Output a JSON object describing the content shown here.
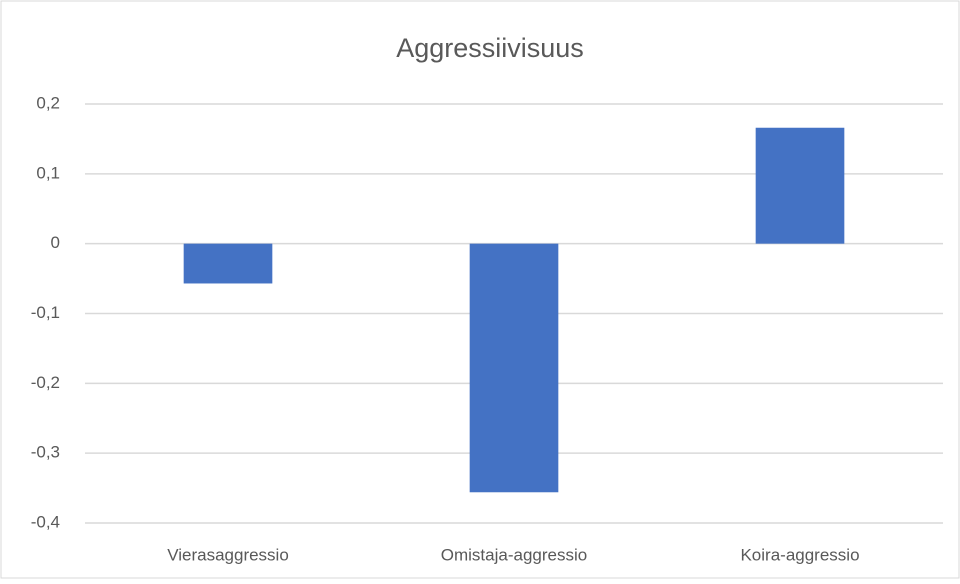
{
  "chart_data": {
    "type": "bar",
    "title": "Aggressiivisuus",
    "categories": [
      "Vierasaggressio",
      "Omistaja-aggressio",
      "Koira-aggressio"
    ],
    "values": [
      -0.057,
      -0.356,
      0.166
    ],
    "color": "#4472c4",
    "ylim": [
      -0.4,
      0.2
    ],
    "yticks": [
      {
        "value": 0.2,
        "label": "0,2"
      },
      {
        "value": 0.1,
        "label": "0,1"
      },
      0,
      {
        "value": -0.1,
        "label": "-0,1"
      },
      {
        "value": -0.2,
        "label": "-0,2"
      },
      {
        "value": -0.3,
        "label": "-0,3"
      },
      {
        "value": -0.4,
        "label": "-0,4"
      }
    ],
    "grid": true
  }
}
